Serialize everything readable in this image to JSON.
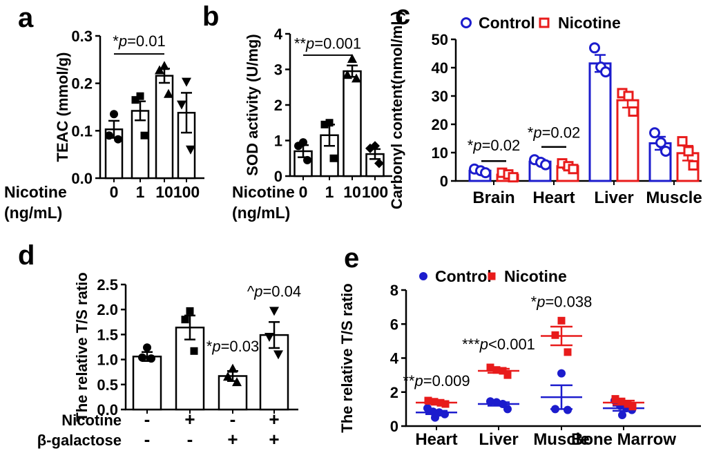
{
  "figure": {
    "background": "#ffffff"
  },
  "colors": {
    "control_blue": "#1c1ccd",
    "nicotine_red": "#e81b1b",
    "black": "#000000",
    "bar_fill": "#ffffff"
  },
  "panels": {
    "a": {
      "letter": "a"
    },
    "b": {
      "letter": "b"
    },
    "c": {
      "letter": "c"
    },
    "d": {
      "letter": "d"
    },
    "e": {
      "letter": "e"
    }
  },
  "chart_data": [
    {
      "id": "a",
      "type": "bar",
      "ylabel": "TEAC (mmol/g)",
      "xlabel_lines": [
        "Nicotine",
        "(ng/mL)"
      ],
      "categories": [
        "0",
        "1",
        "10",
        "100"
      ],
      "values": [
        0.103,
        0.142,
        0.216,
        0.138
      ],
      "errors": [
        0.018,
        0.02,
        0.015,
        0.042
      ],
      "points": [
        [
          0.135,
          0.09,
          0.082
        ],
        [
          0.173,
          0.165,
          0.09
        ],
        [
          0.237,
          0.228,
          0.178
        ],
        [
          0.203,
          0.155,
          0.06
        ]
      ],
      "point_markers": [
        "circle",
        "square",
        "triangle-up",
        "triangle-down"
      ],
      "ylim": [
        0,
        0.3
      ],
      "yticks": [
        "0.0",
        "0.1",
        "0.2",
        "0.3"
      ],
      "significance": [
        {
          "text": "*p=0.01",
          "from": 0,
          "to": 2,
          "line_y": 0.262,
          "text_y": 0.278
        }
      ]
    },
    {
      "id": "b",
      "type": "bar",
      "ylabel": "SOD activity (U/mg)",
      "xlabel_lines": [
        "Nicotine",
        "(ng/mL)"
      ],
      "categories": [
        "0",
        "1",
        "10",
        "100"
      ],
      "values": [
        0.7,
        1.15,
        2.95,
        0.62
      ],
      "errors": [
        0.17,
        0.3,
        0.16,
        0.14
      ],
      "points": [
        [
          0.95,
          0.85,
          0.45
        ],
        [
          1.5,
          1.45,
          0.5
        ],
        [
          3.3,
          2.85,
          2.75
        ],
        [
          0.85,
          0.78,
          0.36
        ]
      ],
      "point_markers": [
        "circle",
        "square",
        "triangle-up",
        "diamond"
      ],
      "ylim": [
        0,
        4
      ],
      "yticks": [
        "0",
        "1",
        "2",
        "3",
        "4"
      ],
      "significance": [
        {
          "text": "**p=0.001",
          "from": 0,
          "to": 2,
          "line_y": 3.4,
          "text_y": 3.58
        }
      ]
    },
    {
      "id": "c",
      "type": "grouped-bar",
      "ylabel": "Carbonyl content(nmol/mL)",
      "categories": [
        "Brain",
        "Heart",
        "Liver",
        "Muscle"
      ],
      "legend": [
        {
          "label": "Control",
          "marker": "open-circle",
          "color_key": "control_blue"
        },
        {
          "label": "Nicotine",
          "marker": "open-square",
          "color_key": "nicotine_red"
        }
      ],
      "series": [
        {
          "name": "Control",
          "color_key": "control_blue",
          "marker": "open-circle",
          "values": [
            3.6,
            6.8,
            41.5,
            13.3
          ],
          "errors": [
            0.5,
            0.8,
            3.0,
            2.3
          ],
          "points": [
            [
              4.2,
              3.6,
              2.9
            ],
            [
              7.5,
              6.6,
              5.7
            ],
            [
              47,
              40.2,
              38.5
            ],
            [
              17,
              13.5,
              10.5
            ]
          ]
        },
        {
          "name": "Nicotine",
          "color_key": "nicotine_red",
          "marker": "open-square",
          "values": [
            2.2,
            5.2,
            28.5,
            9.8
          ],
          "errors": [
            0.6,
            0.9,
            2.6,
            2.6
          ],
          "points": [
            [
              2.9,
              2.3,
              1.3
            ],
            [
              6.2,
              5.2,
              4.2
            ],
            [
              31,
              30,
              24.5
            ],
            [
              14,
              10.5,
              5.5
            ]
          ]
        }
      ],
      "ylim": [
        0,
        50
      ],
      "yticks": [
        "0",
        "10",
        "20",
        "30",
        "40",
        "50"
      ],
      "significance": [
        {
          "text": "*p=0.02",
          "category": 0,
          "line_y": 7,
          "text_y": 10.7
        },
        {
          "text": "*p=0.02",
          "category": 1,
          "line_y": 12,
          "text_y": 15.3
        }
      ]
    },
    {
      "id": "d",
      "type": "bar",
      "ylabel": "The relative T/S ratio",
      "x_rows": [
        {
          "label": "Nicotine",
          "values": [
            "-",
            "+",
            "-",
            "+"
          ]
        },
        {
          "label": "β-galactose",
          "values": [
            "-",
            "-",
            "+",
            "+"
          ]
        }
      ],
      "values": [
        1.06,
        1.64,
        0.67,
        1.49
      ],
      "errors": [
        0.09,
        0.24,
        0.1,
        0.26
      ],
      "points": [
        [
          1.24,
          1.04,
          1.02
        ],
        [
          1.97,
          1.8,
          1.17
        ],
        [
          0.82,
          0.66,
          0.55
        ],
        [
          1.97,
          1.45,
          1.1
        ]
      ],
      "point_markers": [
        "circle",
        "square",
        "triangle-up",
        "triangle-down"
      ],
      "ylim": [
        0,
        2.5
      ],
      "yticks": [
        "0.0",
        "0.5",
        "1.0",
        "1.5",
        "2.0",
        "2.5"
      ],
      "annotations": [
        {
          "text": "*p=0.03",
          "bar": 2,
          "y": 1.16
        },
        {
          "text": "^p=0.04",
          "bar": 3,
          "y": 2.26
        }
      ]
    },
    {
      "id": "e",
      "type": "scatter",
      "ylabel": "The relative T/S ratio",
      "categories": [
        "Heart",
        "Liver",
        "Muscle",
        "Bone Marrow"
      ],
      "legend": [
        {
          "label": "Control",
          "marker": "circle",
          "color_key": "control_blue"
        },
        {
          "label": "Nicotine",
          "marker": "square",
          "color_key": "nicotine_red"
        }
      ],
      "series": [
        {
          "name": "Control",
          "color_key": "control_blue",
          "marker": "circle",
          "means": [
            0.8,
            1.3,
            1.7,
            1.05
          ],
          "errors": [
            0.1,
            0.1,
            0.7,
            0.15
          ],
          "points": [
            [
              1.05,
              0.85,
              0.8,
              0.7,
              0.5
            ],
            [
              1.45,
              1.4,
              1.3,
              1.0
            ],
            [
              3.1,
              1.0,
              0.95
            ],
            [
              1.5,
              1.2,
              1.05,
              0.95,
              0.65
            ]
          ]
        },
        {
          "name": "Nicotine",
          "color_key": "nicotine_red",
          "marker": "square",
          "means": [
            1.38,
            3.25,
            5.3,
            1.38
          ],
          "errors": [
            0.07,
            0.12,
            0.55,
            0.12
          ],
          "points": [
            [
              1.5,
              1.43,
              1.37,
              1.3
            ],
            [
              3.45,
              3.3,
              3.25,
              3.0
            ],
            [
              6.2,
              5.35,
              4.35
            ],
            [
              1.6,
              1.45,
              1.3,
              1.15
            ]
          ]
        }
      ],
      "ylim": [
        0,
        8
      ],
      "yticks": [
        "0",
        "2",
        "4",
        "6",
        "8"
      ],
      "annotations": [
        {
          "text": "**p=0.009",
          "category": 0,
          "y": 2.35
        },
        {
          "text": "***p<0.001",
          "category": 1,
          "y": 4.5
        },
        {
          "text": "*p=0.038",
          "category": 2,
          "y": 7.0
        }
      ]
    }
  ]
}
